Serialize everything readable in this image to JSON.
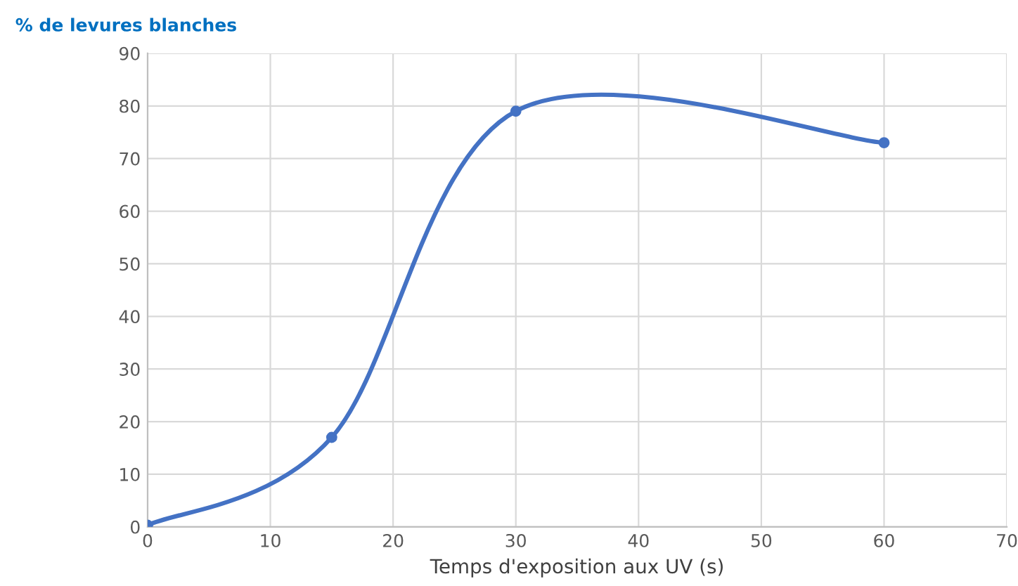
{
  "chart_data": {
    "type": "line",
    "ylabel": "% de levures blanches",
    "xlabel": "Temps d'exposition aux UV (s)",
    "x": [
      0,
      15,
      30,
      60
    ],
    "series": [
      {
        "color": "#4472c4",
        "values": [
          0.3,
          17,
          79,
          73
        ]
      }
    ],
    "xlim": [
      0,
      70
    ],
    "xticks": [
      0,
      10,
      20,
      30,
      40,
      50,
      60,
      70
    ],
    "ylim": [
      0,
      90
    ],
    "yticks": [
      0,
      10,
      20,
      30,
      40,
      50,
      60,
      70,
      80,
      90
    ],
    "grid": true,
    "marker": "circle",
    "line_style": "solid"
  }
}
